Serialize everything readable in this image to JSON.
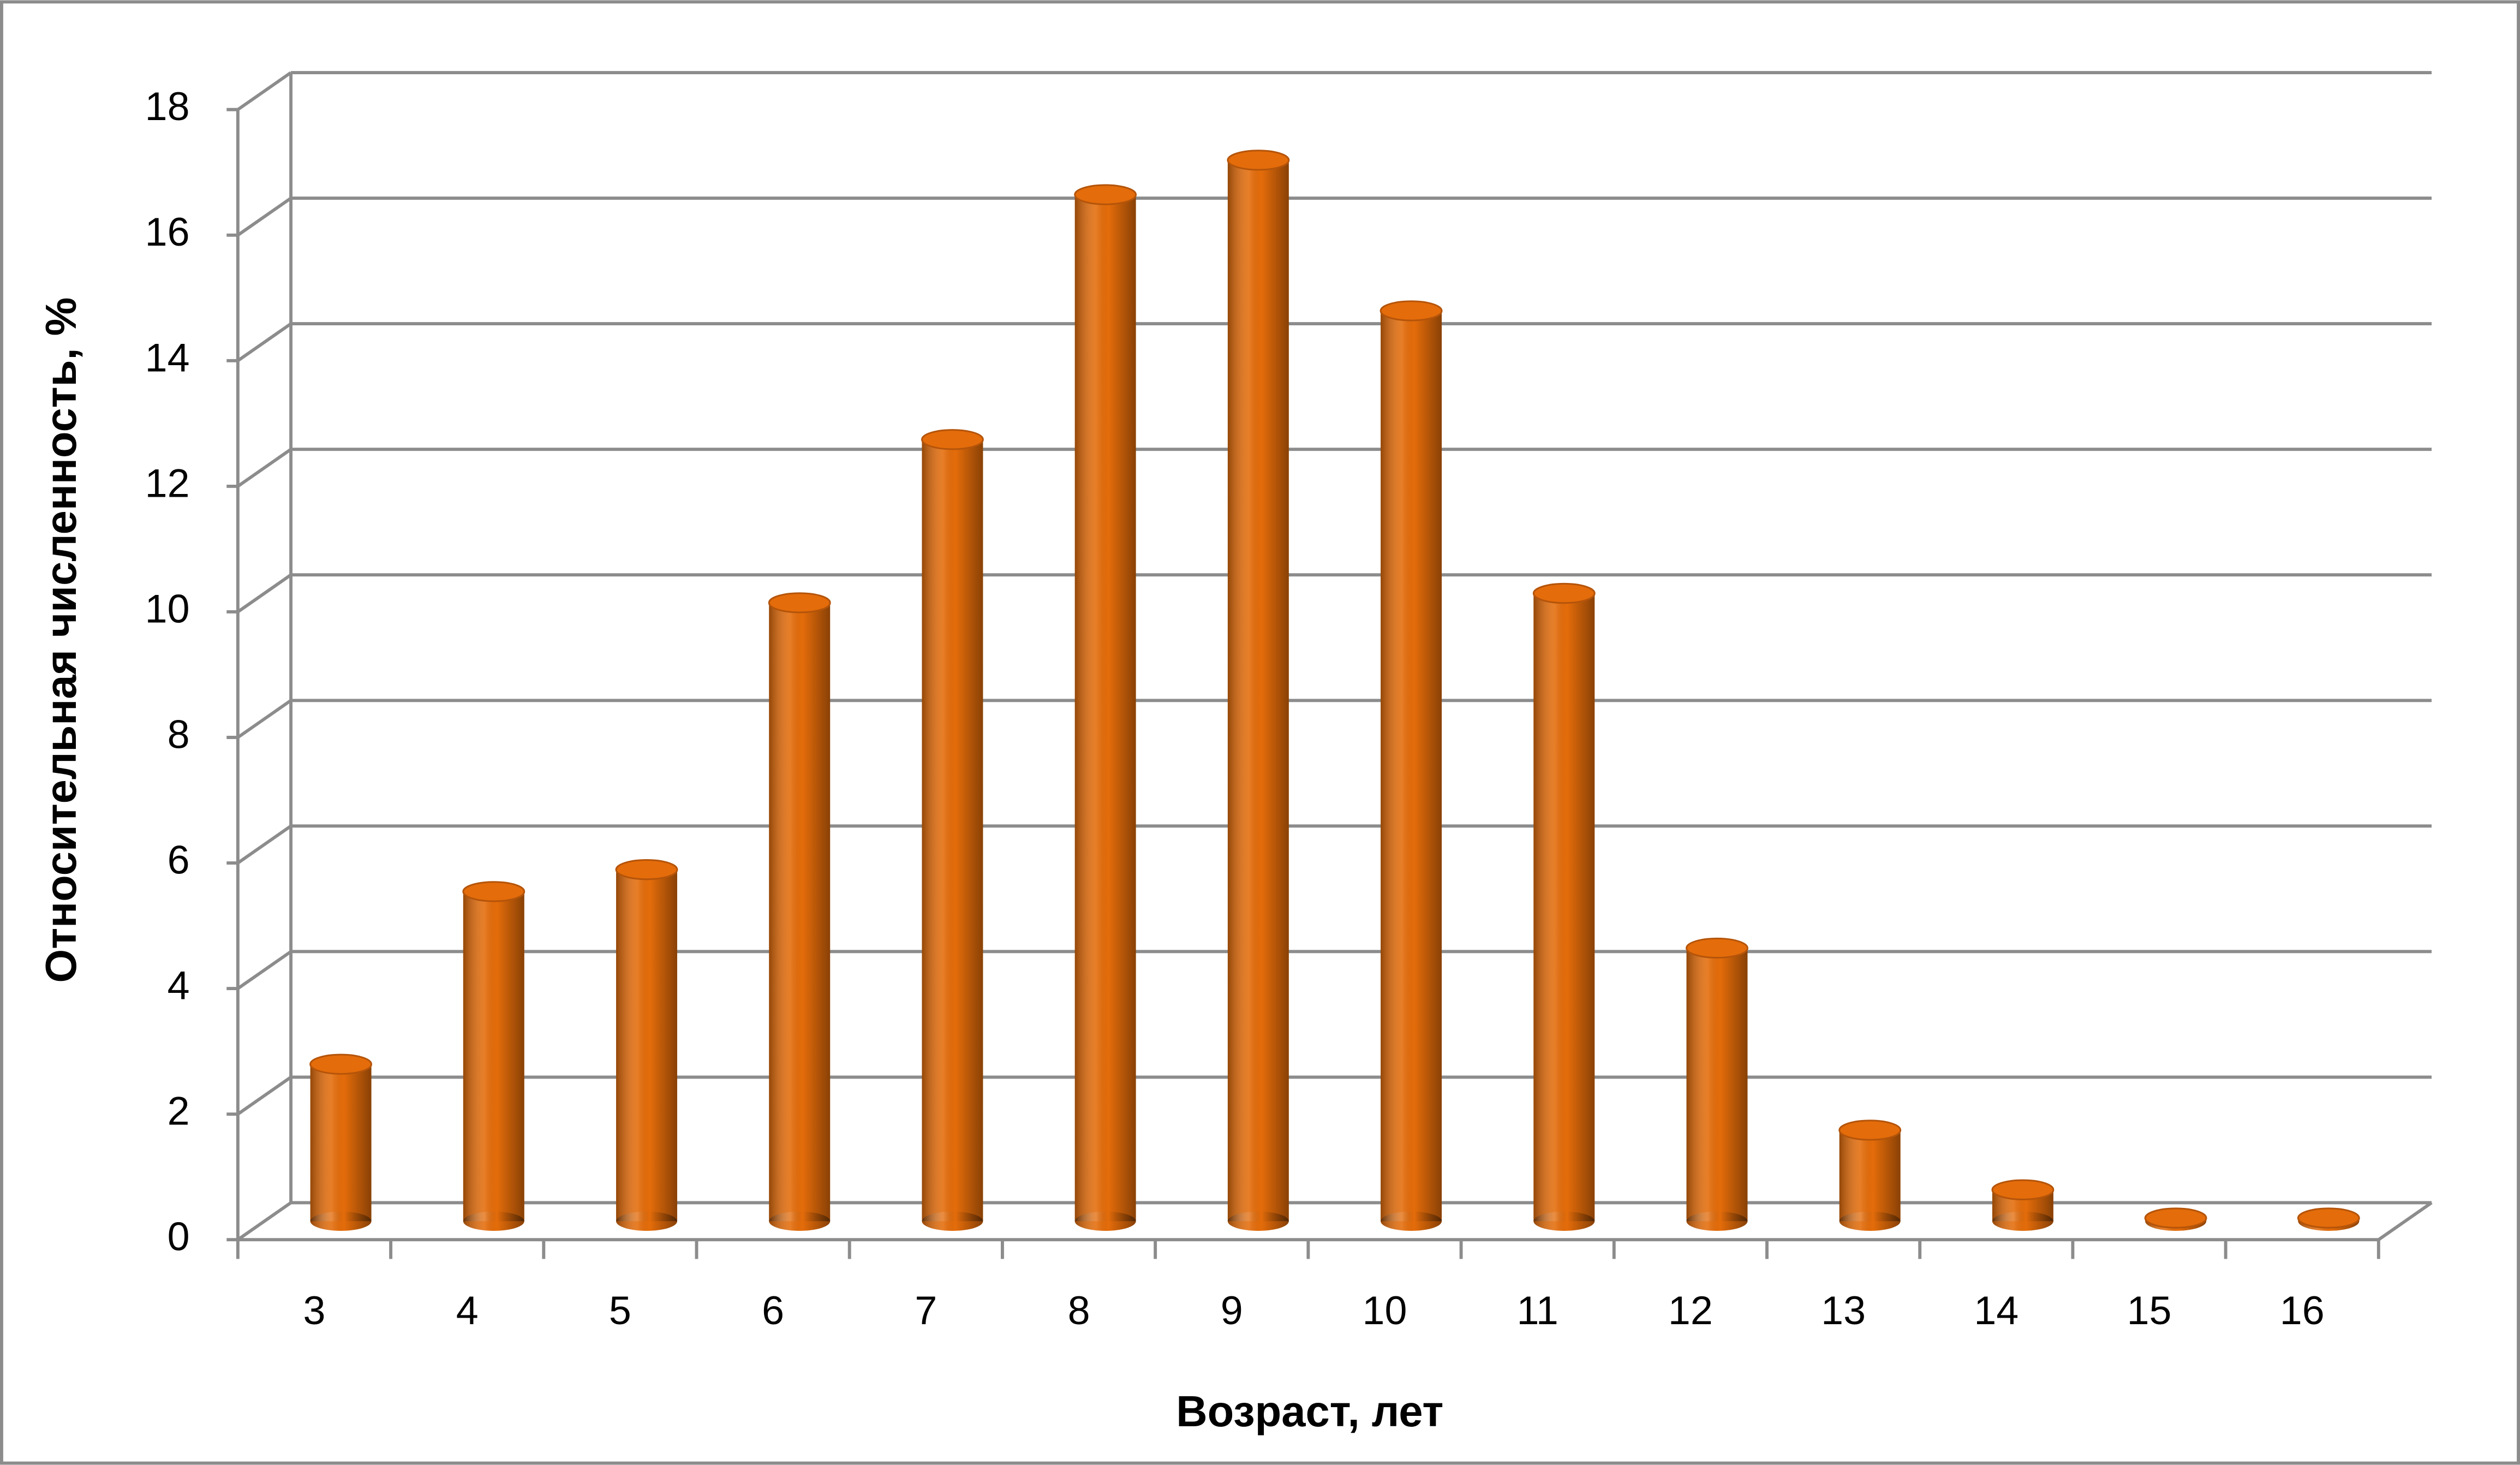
{
  "chart_data": {
    "type": "bar",
    "x_label": "Возраст, лет",
    "y_label": "Относительная численность, %",
    "categories": [
      "3",
      "4",
      "5",
      "6",
      "7",
      "8",
      "9",
      "10",
      "11",
      "12",
      "13",
      "14",
      "15",
      "16"
    ],
    "values": [
      2.5,
      5.25,
      5.6,
      9.85,
      12.45,
      16.35,
      16.9,
      14.5,
      10.0,
      4.35,
      1.45,
      0.5,
      0.05,
      0.05
    ],
    "color": "#e46c0a",
    "ylim": [
      0,
      18
    ],
    "yticks": [
      0,
      2,
      4,
      6,
      8,
      10,
      12,
      14,
      16,
      18
    ],
    "grid": true
  }
}
